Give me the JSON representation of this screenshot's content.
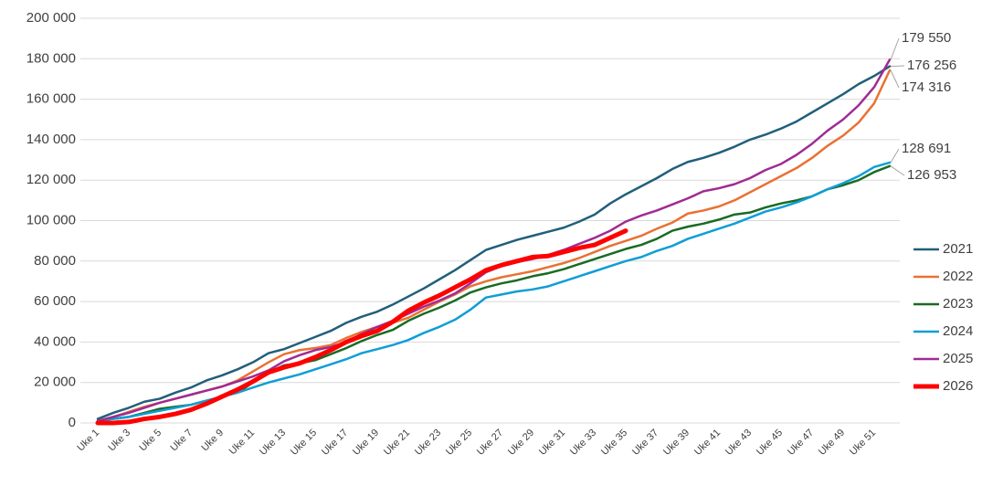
{
  "chart_data": {
    "type": "line",
    "categories": [
      "Uke 1",
      null,
      "Uke 3",
      null,
      "Uke 5",
      null,
      "Uke 7",
      null,
      "Uke 9",
      null,
      "Uke 11",
      null,
      "Uke 13",
      null,
      "Uke 15",
      null,
      "Uke 17",
      null,
      "Uke 19",
      null,
      "Uke 21",
      null,
      "Uke 23",
      null,
      "Uke 25",
      null,
      "Uke 27",
      null,
      "Uke 29",
      null,
      "Uke 31",
      null,
      "Uke 33",
      null,
      "Uke 35",
      null,
      "Uke 37",
      null,
      "Uke 39",
      null,
      "Uke 41",
      null,
      "Uke 43",
      null,
      "Uke 45",
      null,
      "Uke 47",
      null,
      "Uke 49",
      null,
      "Uke 51",
      null
    ],
    "ylim": [
      0,
      200000
    ],
    "yticks": [
      0,
      {
        "value": 20000,
        "label": "20 000"
      },
      {
        "value": 40000,
        "label": "40 000"
      },
      {
        "value": 60000,
        "label": "60 000"
      },
      {
        "value": 80000,
        "label": "80 000"
      },
      {
        "value": 100000,
        "label": "100 000"
      },
      {
        "value": 120000,
        "label": "120 000"
      },
      {
        "value": 140000,
        "label": "140 000"
      },
      {
        "value": 160000,
        "label": "160 000"
      },
      {
        "value": 180000,
        "label": "180 000"
      },
      {
        "value": 200000,
        "label": "200 000"
      }
    ],
    "grid": true,
    "legend": "right",
    "series": [
      {
        "name": "2021",
        "color": "#215f7b",
        "values": [
          2000,
          5000,
          7500,
          10500,
          12000,
          15000,
          17500,
          21000,
          23500,
          26500,
          30000,
          34500,
          36500,
          39500,
          42500,
          45500,
          49500,
          52500,
          55000,
          58500,
          62500,
          66500,
          71000,
          75500,
          80500,
          85500,
          88000,
          90500,
          92500,
          94500,
          96500,
          99500,
          103000,
          108500,
          113000,
          117000,
          121000,
          125500,
          129000,
          131000,
          133500,
          136500,
          140000,
          142500,
          145500,
          149000,
          153500,
          158000,
          162500,
          167500,
          171500,
          176256
        ],
        "value_labels": [
          null,
          null,
          null,
          null,
          null,
          null,
          null,
          null,
          null,
          null,
          null,
          null,
          null,
          null,
          null,
          null,
          null,
          null,
          null,
          null,
          null,
          null,
          null,
          null,
          null,
          null,
          null,
          null,
          null,
          null,
          null,
          null,
          null,
          null,
          null,
          null,
          null,
          null,
          null,
          null,
          null,
          null,
          null,
          null,
          null,
          null,
          null,
          null,
          null,
          null,
          null,
          "176 256"
        ]
      },
      {
        "name": "2022",
        "color": "#e97132",
        "values": [
          1000,
          3000,
          5500,
          8000,
          10000,
          12000,
          14000,
          16000,
          18000,
          21000,
          25500,
          30000,
          34000,
          36000,
          37000,
          38500,
          42000,
          45000,
          47500,
          49500,
          52000,
          56000,
          60000,
          63500,
          67500,
          70000,
          72000,
          73500,
          75000,
          77000,
          79000,
          81500,
          84500,
          87500,
          90000,
          92500,
          96000,
          99000,
          103500,
          105000,
          107000,
          110000,
          114000,
          118000,
          122000,
          126000,
          131000,
          137000,
          142000,
          148500,
          158000,
          174316
        ],
        "value_labels": [
          null,
          null,
          null,
          null,
          null,
          null,
          null,
          null,
          null,
          null,
          null,
          null,
          null,
          null,
          null,
          null,
          null,
          null,
          null,
          null,
          null,
          null,
          null,
          null,
          null,
          null,
          null,
          null,
          null,
          null,
          null,
          null,
          null,
          null,
          null,
          null,
          null,
          null,
          null,
          null,
          null,
          null,
          null,
          null,
          null,
          null,
          null,
          null,
          null,
          null,
          null,
          "174 316"
        ]
      },
      {
        "name": "2023",
        "color": "#196b24",
        "values": [
          1000,
          2000,
          3000,
          5000,
          7000,
          8000,
          9000,
          11000,
          13000,
          15000,
          20000,
          25000,
          28500,
          29500,
          31000,
          34000,
          37000,
          40500,
          43500,
          46000,
          50500,
          54000,
          57000,
          60500,
          64500,
          67000,
          69000,
          70500,
          72500,
          74000,
          76000,
          78500,
          81000,
          83500,
          86000,
          88000,
          91000,
          95000,
          97000,
          98500,
          100500,
          103000,
          104000,
          106500,
          108500,
          110000,
          112000,
          115500,
          117500,
          120000,
          124000,
          126953
        ],
        "value_labels": [
          null,
          null,
          null,
          null,
          null,
          null,
          null,
          null,
          null,
          null,
          null,
          null,
          null,
          null,
          null,
          null,
          null,
          null,
          null,
          null,
          null,
          null,
          null,
          null,
          null,
          null,
          null,
          null,
          null,
          null,
          null,
          null,
          null,
          null,
          null,
          null,
          null,
          null,
          null,
          null,
          null,
          null,
          null,
          null,
          null,
          null,
          null,
          null,
          null,
          null,
          null,
          "126 953"
        ]
      },
      {
        "name": "2024",
        "color": "#0f9ed5",
        "values": [
          1000,
          2000,
          3000,
          4500,
          6000,
          7500,
          9000,
          11000,
          13000,
          15000,
          17500,
          20000,
          22000,
          24000,
          26500,
          29000,
          31500,
          34500,
          36500,
          38500,
          41000,
          44500,
          47500,
          51000,
          56000,
          62000,
          63500,
          65000,
          66000,
          67500,
          70000,
          72500,
          75000,
          77500,
          80000,
          82000,
          85000,
          87500,
          91000,
          93500,
          96000,
          98500,
          101500,
          104500,
          106500,
          109000,
          112000,
          115500,
          118500,
          122000,
          126500,
          128691
        ],
        "value_labels": [
          null,
          null,
          null,
          null,
          null,
          null,
          null,
          null,
          null,
          null,
          null,
          null,
          null,
          null,
          null,
          null,
          null,
          null,
          null,
          null,
          null,
          null,
          null,
          null,
          null,
          null,
          null,
          null,
          null,
          null,
          null,
          null,
          null,
          null,
          null,
          null,
          null,
          null,
          null,
          null,
          null,
          null,
          null,
          null,
          null,
          null,
          null,
          null,
          null,
          null,
          null,
          "128 691"
        ]
      },
      {
        "name": "2025",
        "color": "#a02b93",
        "values": [
          1000,
          3000,
          5000,
          7500,
          10000,
          12000,
          14000,
          16000,
          18000,
          20500,
          23000,
          26000,
          30500,
          33500,
          36000,
          37500,
          40000,
          44000,
          47500,
          50500,
          54000,
          57500,
          60500,
          64000,
          69000,
          74500,
          77500,
          79500,
          81000,
          83000,
          85500,
          88500,
          91500,
          95000,
          99500,
          102500,
          105000,
          108000,
          111000,
          114500,
          116000,
          118000,
          121000,
          125000,
          128000,
          132500,
          138000,
          144500,
          150000,
          157000,
          166000,
          179550
        ],
        "value_labels": [
          null,
          null,
          null,
          null,
          null,
          null,
          null,
          null,
          null,
          null,
          null,
          null,
          null,
          null,
          null,
          null,
          null,
          null,
          null,
          null,
          null,
          null,
          null,
          null,
          null,
          null,
          null,
          null,
          null,
          null,
          null,
          null,
          null,
          null,
          null,
          null,
          null,
          null,
          null,
          null,
          null,
          null,
          null,
          null,
          null,
          null,
          null,
          null,
          null,
          null,
          null,
          "179 550"
        ]
      },
      {
        "name": "2026",
        "color": "#ff0000",
        "values": [
          0,
          0,
          500,
          2000,
          3000,
          4500,
          6500,
          9500,
          13000,
          16500,
          20500,
          25000,
          27500,
          29500,
          32500,
          36000,
          40000,
          43000,
          45500,
          50000,
          55500,
          59500,
          63000,
          67000,
          71000,
          75500,
          78000,
          80000,
          82000,
          82500,
          84500,
          86500,
          88000,
          91500,
          95000,
          null,
          null,
          null,
          null,
          null,
          null,
          null,
          null,
          null,
          null,
          null,
          null,
          null,
          null,
          null,
          null,
          null
        ]
      }
    ]
  }
}
